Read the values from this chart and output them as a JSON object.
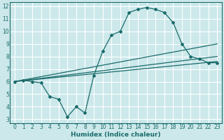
{
  "title": "",
  "xlabel": "Humidex (Indice chaleur)",
  "ylabel": "",
  "bg_color": "#cce8ea",
  "grid_color": "#ffffff",
  "line_color": "#1a6b6b",
  "xlim": [
    -0.5,
    23.5
  ],
  "ylim": [
    2.7,
    12.3
  ],
  "xticks": [
    0,
    1,
    2,
    3,
    4,
    5,
    6,
    7,
    8,
    9,
    10,
    11,
    12,
    13,
    14,
    15,
    16,
    17,
    18,
    19,
    20,
    21,
    22,
    23
  ],
  "yticks": [
    3,
    4,
    5,
    6,
    7,
    8,
    9,
    10,
    11,
    12
  ],
  "line1_x": [
    0,
    1,
    2,
    3,
    4,
    5,
    6,
    7,
    8,
    9,
    10,
    11,
    12,
    13,
    14,
    15,
    16,
    17,
    18,
    19,
    20,
    21,
    22,
    23
  ],
  "line1_y": [
    6.0,
    6.1,
    6.0,
    5.9,
    4.8,
    4.6,
    3.2,
    4.0,
    3.5,
    6.5,
    8.4,
    9.7,
    10.0,
    11.5,
    11.75,
    11.9,
    11.75,
    11.5,
    10.7,
    9.0,
    8.0,
    7.8,
    7.5,
    7.5
  ],
  "line2_x": [
    0,
    23
  ],
  "line2_y": [
    6.0,
    9.0
  ],
  "line3_x": [
    0,
    23
  ],
  "line3_y": [
    6.0,
    8.0
  ],
  "line4_x": [
    0,
    23
  ],
  "line4_y": [
    6.0,
    7.6
  ]
}
